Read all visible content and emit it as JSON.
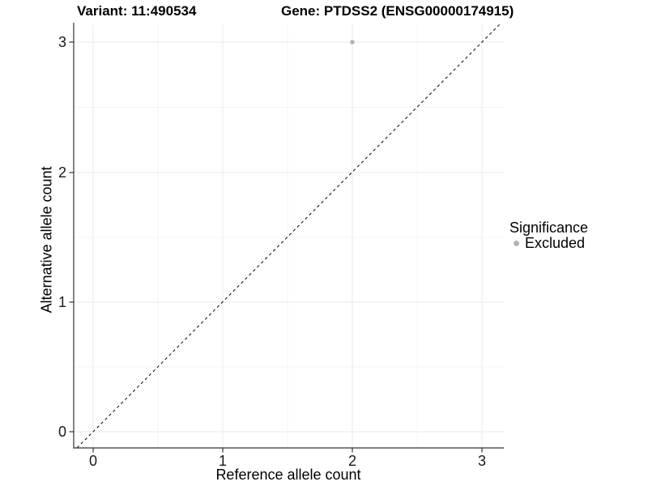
{
  "titles": {
    "variant": "Variant: 11:490534",
    "gene": "Gene: PTDSS2 (ENSG00000174915)"
  },
  "axes": {
    "x": {
      "label": "Reference allele count",
      "ticks": [
        "0",
        "1",
        "2",
        "3"
      ]
    },
    "y": {
      "label": "Alternative allele count",
      "ticks": [
        "0",
        "1",
        "2",
        "3"
      ]
    }
  },
  "legend": {
    "title": "Significance",
    "items": [
      {
        "label": "Excluded",
        "marker_color": "#b5b5b5"
      }
    ]
  },
  "colors": {
    "point": "#b5b5b5",
    "grid_major": "#e9e9e9",
    "grid_minor": "#f4f4f4",
    "axis_line": "#333333",
    "reference_line": "#000000"
  },
  "chart_data": {
    "type": "scatter",
    "title": "Variant: 11:490534",
    "subtitle": "Gene: PTDSS2 (ENSG00000174915)",
    "xlabel": "Reference allele count",
    "ylabel": "Alternative allele count",
    "x_ticks": [
      0,
      1,
      2,
      3
    ],
    "y_ticks": [
      0,
      1,
      2,
      3
    ],
    "xlim": [
      -0.15,
      3.17
    ],
    "ylim": [
      -0.13,
      3.14
    ],
    "grid": true,
    "legend_position": "right",
    "legend_title": "Significance",
    "series": [
      {
        "name": "Excluded",
        "color": "#b5b5b5",
        "points": [
          {
            "x": 2,
            "y": 3
          }
        ]
      }
    ],
    "reference_line": {
      "style": "dashed",
      "slope": 1,
      "intercept": 0,
      "color": "#000000"
    }
  }
}
